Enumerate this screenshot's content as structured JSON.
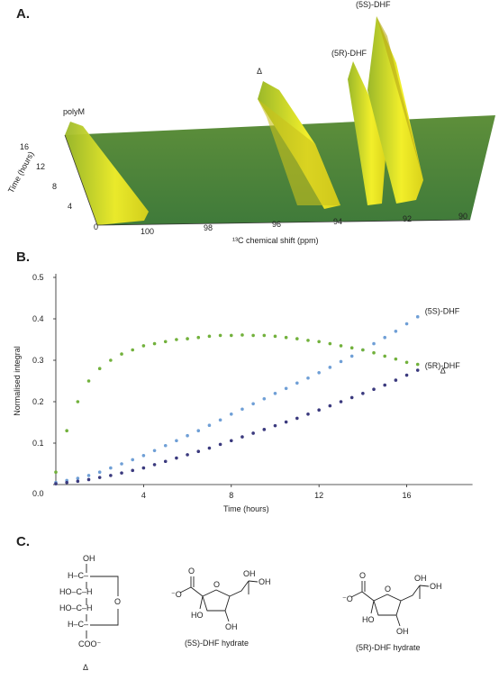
{
  "panel_a": {
    "label": "A.",
    "peaks": [
      "polyM",
      "Δ",
      "(5R)-DHF",
      "(5S)-DHF"
    ],
    "time_axis": {
      "title": "Time (hours)",
      "ticks": [
        "0",
        "4",
        "8",
        "12",
        "16"
      ]
    },
    "shift_axis": {
      "title": "¹³C chemical shift (ppm)",
      "ticks": [
        "100",
        "98",
        "96",
        "94",
        "92",
        "90"
      ]
    }
  },
  "chart_data": {
    "type": "scatter",
    "label": "B.",
    "x_label": "Time (hours)",
    "y_label": "Normalised integral",
    "x": [
      0,
      0.5,
      1,
      1.5,
      2,
      2.5,
      3,
      3.5,
      4,
      4.5,
      5,
      5.5,
      6,
      6.5,
      7,
      7.5,
      8,
      8.5,
      9,
      9.5,
      10,
      10.5,
      11,
      11.5,
      12,
      12.5,
      13,
      13.5,
      14,
      14.5,
      15,
      15.5,
      16,
      16.5
    ],
    "series": [
      {
        "name": "(5S)-DHF",
        "color": "#6f9fd6",
        "values": [
          0.005,
          0.01,
          0.015,
          0.022,
          0.03,
          0.04,
          0.05,
          0.06,
          0.07,
          0.082,
          0.094,
          0.106,
          0.118,
          0.13,
          0.143,
          0.156,
          0.17,
          0.182,
          0.195,
          0.207,
          0.22,
          0.232,
          0.245,
          0.257,
          0.27,
          0.283,
          0.297,
          0.31,
          0.325,
          0.34,
          0.355,
          0.37,
          0.388,
          0.405
        ]
      },
      {
        "name": "(5R)-DHF",
        "color": "#3b3a7e",
        "values": [
          0.002,
          0.005,
          0.008,
          0.012,
          0.017,
          0.022,
          0.028,
          0.034,
          0.04,
          0.048,
          0.056,
          0.064,
          0.072,
          0.08,
          0.088,
          0.097,
          0.106,
          0.115,
          0.124,
          0.133,
          0.142,
          0.151,
          0.16,
          0.17,
          0.18,
          0.19,
          0.2,
          0.21,
          0.22,
          0.23,
          0.24,
          0.252,
          0.264,
          0.276
        ]
      },
      {
        "name": "Δ",
        "color": "#72b13c",
        "values": [
          0.03,
          0.13,
          0.2,
          0.25,
          0.28,
          0.3,
          0.315,
          0.325,
          0.335,
          0.34,
          0.345,
          0.35,
          0.352,
          0.355,
          0.358,
          0.36,
          0.36,
          0.361,
          0.36,
          0.36,
          0.358,
          0.355,
          0.352,
          0.348,
          0.345,
          0.34,
          0.335,
          0.33,
          0.325,
          0.318,
          0.31,
          0.303,
          0.295,
          0.29
        ]
      }
    ],
    "xlim": [
      0,
      19
    ],
    "ylim": [
      0,
      0.5
    ],
    "xticks": [
      4,
      8,
      12,
      16
    ],
    "yticks": [
      {
        "value": 0,
        "label": "0.0"
      },
      0.1,
      0.2,
      0.3,
      0.4,
      0.5
    ]
  },
  "panel_c": {
    "label": "C.",
    "structures": [
      {
        "name": "Δ",
        "atoms": [
          "OH",
          "H–C–",
          "HO–C–H",
          "HO–C–H",
          "H–C–",
          "COO⁻",
          "O"
        ]
      },
      {
        "name": "(5S)-DHF hydrate",
        "atoms": [
          "O",
          "⁻O",
          "O",
          "HO",
          "OH",
          "OH",
          "OH"
        ]
      },
      {
        "name": "(5R)-DHF hydrate",
        "atoms": [
          "O",
          "⁻O",
          "O",
          "HO",
          "OH",
          "OH",
          "OH"
        ]
      }
    ]
  }
}
